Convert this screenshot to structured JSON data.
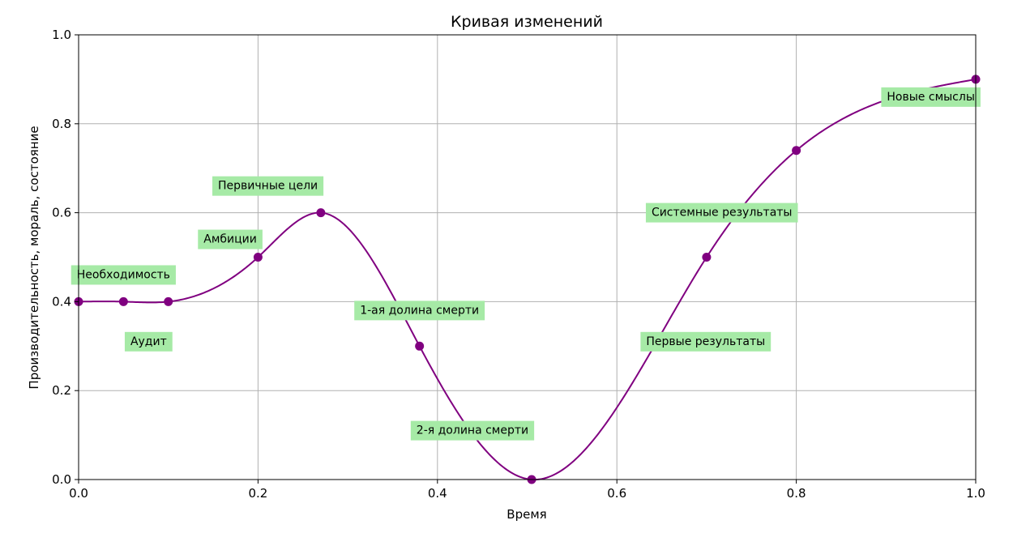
{
  "chart_data": {
    "type": "line",
    "title": "Кривая изменений",
    "xlabel": "Время",
    "ylabel": "Производительность, мораль, состояние",
    "xlim": [
      0.0,
      1.0
    ],
    "ylim": [
      0.0,
      1.0
    ],
    "xticks": [
      "0.0",
      "0.2",
      "0.4",
      "0.6",
      "0.8",
      "1.0"
    ],
    "yticks": [
      "0.0",
      "0.2",
      "0.4",
      "0.6",
      "0.8",
      "1.0"
    ],
    "grid": true,
    "line_color": "#800080",
    "annotation_bg": "#a6eaa6",
    "points": [
      {
        "x": 0.0,
        "y": 0.4
      },
      {
        "x": 0.05,
        "y": 0.4
      },
      {
        "x": 0.1,
        "y": 0.4
      },
      {
        "x": 0.2,
        "y": 0.5
      },
      {
        "x": 0.27,
        "y": 0.6
      },
      {
        "x": 0.38,
        "y": 0.3
      },
      {
        "x": 0.505,
        "y": 0.0
      },
      {
        "x": 0.7,
        "y": 0.5
      },
      {
        "x": 0.8,
        "y": 0.74
      },
      {
        "x": 1.0,
        "y": 0.9
      }
    ],
    "annotations": [
      {
        "text": "Необходимость",
        "x": 0.05,
        "y": 0.46
      },
      {
        "text": "Аудит",
        "x": 0.078,
        "y": 0.31
      },
      {
        "text": "Амбиции",
        "x": 0.169,
        "y": 0.54
      },
      {
        "text": "Первичные цели",
        "x": 0.211,
        "y": 0.66
      },
      {
        "text": "1-ая долина смерти",
        "x": 0.38,
        "y": 0.38
      },
      {
        "text": "2-я долина смерти",
        "x": 0.439,
        "y": 0.11
      },
      {
        "text": "Системные результаты",
        "x": 0.717,
        "y": 0.6
      },
      {
        "text": "Первые результаты",
        "x": 0.699,
        "y": 0.31
      },
      {
        "text": "Новые смыслы",
        "x": 0.95,
        "y": 0.86
      }
    ]
  }
}
